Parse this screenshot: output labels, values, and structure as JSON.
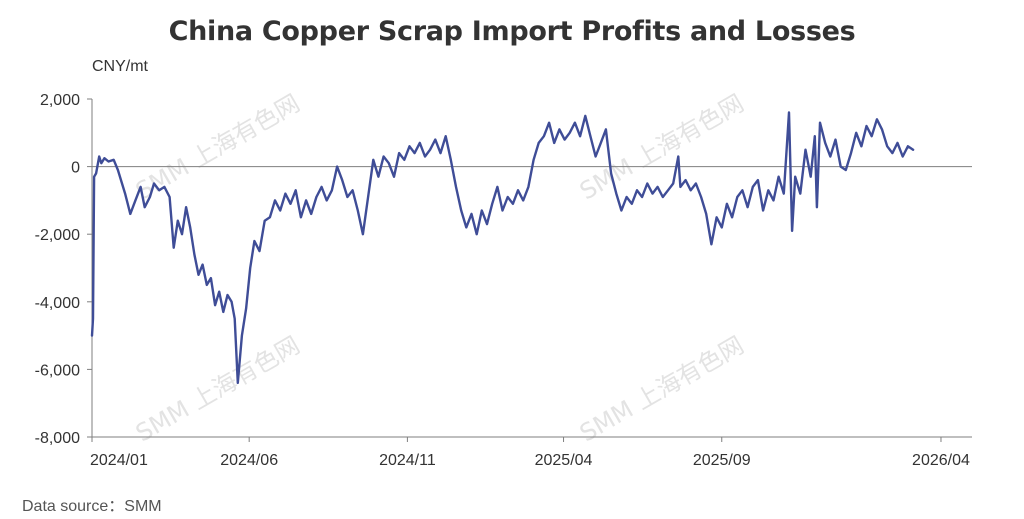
{
  "title": "China Copper Scrap Import Profits and Losses",
  "unit_label": "CNY/mt",
  "source_label": "Data source：SMM",
  "watermark_text": "SMM 上海有色网",
  "colors": {
    "line": "#3f4d97",
    "axis": "#7f7f7f",
    "text": "#333333"
  },
  "chart_data": {
    "type": "line",
    "title": "China Copper Scrap Import Profits and Losses",
    "ylabel": "CNY/mt",
    "xlabel": "",
    "ylim": [
      -8000,
      2000
    ],
    "yticks": [
      2000,
      0,
      -2000,
      -4000,
      -6000,
      -8000
    ],
    "ytick_labels": [
      "2,000",
      "0",
      "-2,000",
      "-4,000",
      "-6,000",
      "-8,000"
    ],
    "xlim": [
      "2024-01-01",
      "2026-05-01"
    ],
    "xticks": [
      "2024-01-01",
      "2024-06-01",
      "2024-11-01",
      "2025-04-01",
      "2025-09-01",
      "2026-04-01"
    ],
    "xtick_labels": [
      "2024/01",
      "2024/06",
      "2024/11",
      "2025/04",
      "2025/09",
      "2026/04"
    ],
    "grid": false,
    "legend": "none",
    "series": [
      {
        "color": "#3f4d97",
        "points": [
          [
            "2024-01-01",
            -5000
          ],
          [
            "2024-01-02",
            -4500
          ],
          [
            "2024-01-03",
            -300
          ],
          [
            "2024-01-05",
            -200
          ],
          [
            "2024-01-08",
            300
          ],
          [
            "2024-01-10",
            100
          ],
          [
            "2024-01-13",
            250
          ],
          [
            "2024-01-17",
            150
          ],
          [
            "2024-01-22",
            200
          ],
          [
            "2024-01-26",
            -100
          ],
          [
            "2024-02-02",
            -800
          ],
          [
            "2024-02-07",
            -1400
          ],
          [
            "2024-02-12",
            -1000
          ],
          [
            "2024-02-17",
            -600
          ],
          [
            "2024-02-21",
            -1200
          ],
          [
            "2024-02-26",
            -900
          ],
          [
            "2024-03-01",
            -500
          ],
          [
            "2024-03-06",
            -700
          ],
          [
            "2024-03-11",
            -600
          ],
          [
            "2024-03-16",
            -900
          ],
          [
            "2024-03-20",
            -2400
          ],
          [
            "2024-03-24",
            -1600
          ],
          [
            "2024-03-28",
            -2000
          ],
          [
            "2024-04-01",
            -1200
          ],
          [
            "2024-04-05",
            -1800
          ],
          [
            "2024-04-09",
            -2600
          ],
          [
            "2024-04-13",
            -3200
          ],
          [
            "2024-04-17",
            -2900
          ],
          [
            "2024-04-21",
            -3500
          ],
          [
            "2024-04-25",
            -3300
          ],
          [
            "2024-04-29",
            -4100
          ],
          [
            "2024-05-03",
            -3700
          ],
          [
            "2024-05-07",
            -4300
          ],
          [
            "2024-05-11",
            -3800
          ],
          [
            "2024-05-15",
            -4000
          ],
          [
            "2024-05-18",
            -4500
          ],
          [
            "2024-05-21",
            -6400
          ],
          [
            "2024-05-25",
            -5000
          ],
          [
            "2024-05-29",
            -4200
          ],
          [
            "2024-06-02",
            -3000
          ],
          [
            "2024-06-06",
            -2200
          ],
          [
            "2024-06-11",
            -2500
          ],
          [
            "2024-06-16",
            -1600
          ],
          [
            "2024-06-21",
            -1500
          ],
          [
            "2024-06-26",
            -1000
          ],
          [
            "2024-07-01",
            -1300
          ],
          [
            "2024-07-06",
            -800
          ],
          [
            "2024-07-11",
            -1100
          ],
          [
            "2024-07-16",
            -700
          ],
          [
            "2024-07-21",
            -1500
          ],
          [
            "2024-07-26",
            -1000
          ],
          [
            "2024-07-31",
            -1400
          ],
          [
            "2024-08-05",
            -900
          ],
          [
            "2024-08-10",
            -600
          ],
          [
            "2024-08-15",
            -1000
          ],
          [
            "2024-08-20",
            -700
          ],
          [
            "2024-08-25",
            0
          ],
          [
            "2024-08-30",
            -400
          ],
          [
            "2024-09-04",
            -900
          ],
          [
            "2024-09-09",
            -700
          ],
          [
            "2024-09-14",
            -1300
          ],
          [
            "2024-09-19",
            -2000
          ],
          [
            "2024-09-24",
            -900
          ],
          [
            "2024-09-29",
            200
          ],
          [
            "2024-10-04",
            -300
          ],
          [
            "2024-10-09",
            300
          ],
          [
            "2024-10-14",
            100
          ],
          [
            "2024-10-19",
            -300
          ],
          [
            "2024-10-24",
            400
          ],
          [
            "2024-10-29",
            200
          ],
          [
            "2024-11-03",
            600
          ],
          [
            "2024-11-08",
            400
          ],
          [
            "2024-11-13",
            700
          ],
          [
            "2024-11-18",
            300
          ],
          [
            "2024-11-23",
            500
          ],
          [
            "2024-11-28",
            800
          ],
          [
            "2024-12-03",
            400
          ],
          [
            "2024-12-08",
            900
          ],
          [
            "2024-12-13",
            200
          ],
          [
            "2024-12-18",
            -600
          ],
          [
            "2024-12-23",
            -1300
          ],
          [
            "2024-12-28",
            -1800
          ],
          [
            "2025-01-02",
            -1400
          ],
          [
            "2025-01-07",
            -2000
          ],
          [
            "2025-01-12",
            -1300
          ],
          [
            "2025-01-17",
            -1700
          ],
          [
            "2025-01-22",
            -1100
          ],
          [
            "2025-01-27",
            -600
          ],
          [
            "2025-02-01",
            -1300
          ],
          [
            "2025-02-06",
            -900
          ],
          [
            "2025-02-11",
            -1100
          ],
          [
            "2025-02-16",
            -700
          ],
          [
            "2025-02-21",
            -1000
          ],
          [
            "2025-02-26",
            -600
          ],
          [
            "2025-03-03",
            200
          ],
          [
            "2025-03-08",
            700
          ],
          [
            "2025-03-13",
            900
          ],
          [
            "2025-03-18",
            1300
          ],
          [
            "2025-03-23",
            700
          ],
          [
            "2025-03-28",
            1100
          ],
          [
            "2025-04-02",
            800
          ],
          [
            "2025-04-07",
            1000
          ],
          [
            "2025-04-12",
            1300
          ],
          [
            "2025-04-17",
            900
          ],
          [
            "2025-04-22",
            1500
          ],
          [
            "2025-04-27",
            900
          ],
          [
            "2025-05-02",
            300
          ],
          [
            "2025-05-07",
            700
          ],
          [
            "2025-05-12",
            1100
          ],
          [
            "2025-05-17",
            -200
          ],
          [
            "2025-05-22",
            -800
          ],
          [
            "2025-05-27",
            -1300
          ],
          [
            "2025-06-01",
            -900
          ],
          [
            "2025-06-06",
            -1100
          ],
          [
            "2025-06-11",
            -700
          ],
          [
            "2025-06-16",
            -900
          ],
          [
            "2025-06-21",
            -500
          ],
          [
            "2025-06-26",
            -800
          ],
          [
            "2025-07-01",
            -600
          ],
          [
            "2025-07-06",
            -900
          ],
          [
            "2025-07-11",
            -700
          ],
          [
            "2025-07-16",
            -500
          ],
          [
            "2025-07-21",
            300
          ],
          [
            "2025-07-23",
            -600
          ],
          [
            "2025-07-28",
            -400
          ],
          [
            "2025-08-02",
            -700
          ],
          [
            "2025-08-07",
            -500
          ],
          [
            "2025-08-12",
            -900
          ],
          [
            "2025-08-17",
            -1400
          ],
          [
            "2025-08-22",
            -2300
          ],
          [
            "2025-08-27",
            -1500
          ],
          [
            "2025-09-01",
            -1800
          ],
          [
            "2025-09-06",
            -1100
          ],
          [
            "2025-09-11",
            -1500
          ],
          [
            "2025-09-16",
            -900
          ],
          [
            "2025-09-21",
            -700
          ],
          [
            "2025-09-26",
            -1200
          ],
          [
            "2025-10-01",
            -600
          ],
          [
            "2025-10-06",
            -400
          ],
          [
            "2025-10-11",
            -1300
          ],
          [
            "2025-10-16",
            -700
          ],
          [
            "2025-10-21",
            -1000
          ],
          [
            "2025-10-26",
            -300
          ],
          [
            "2025-10-31",
            -800
          ],
          [
            "2025-11-05",
            1600
          ],
          [
            "2025-11-08",
            -1900
          ],
          [
            "2025-11-11",
            -300
          ],
          [
            "2025-11-16",
            -800
          ],
          [
            "2025-11-21",
            500
          ],
          [
            "2025-11-26",
            -300
          ],
          [
            "2025-11-30",
            900
          ],
          [
            "2025-12-02",
            -1200
          ],
          [
            "2025-12-05",
            1300
          ],
          [
            "2025-12-10",
            700
          ],
          [
            "2025-12-15",
            300
          ],
          [
            "2025-12-20",
            800
          ],
          [
            "2025-12-25",
            0
          ],
          [
            "2025-12-30",
            -100
          ],
          [
            "2026-01-04",
            400
          ],
          [
            "2026-01-09",
            1000
          ],
          [
            "2026-01-14",
            600
          ],
          [
            "2026-01-19",
            1200
          ],
          [
            "2026-01-24",
            900
          ],
          [
            "2026-01-29",
            1400
          ],
          [
            "2026-02-03",
            1100
          ],
          [
            "2026-02-08",
            600
          ],
          [
            "2026-02-13",
            400
          ],
          [
            "2026-02-18",
            700
          ],
          [
            "2026-02-23",
            300
          ],
          [
            "2026-02-28",
            600
          ],
          [
            "2026-03-05",
            500
          ]
        ]
      }
    ]
  }
}
